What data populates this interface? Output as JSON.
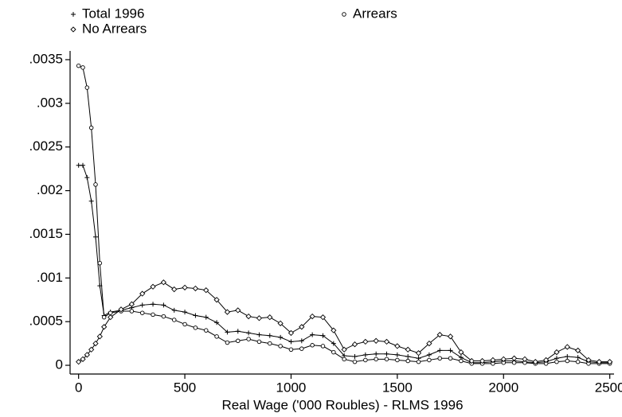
{
  "chart_data": {
    "type": "line",
    "x_label": "Real Wage ('000 Roubles) - RLMS 1996",
    "x": [
      0,
      20,
      40,
      60,
      80,
      100,
      120,
      150,
      200,
      250,
      300,
      350,
      400,
      450,
      500,
      550,
      600,
      650,
      700,
      750,
      800,
      850,
      900,
      950,
      1000,
      1050,
      1100,
      1150,
      1200,
      1250,
      1300,
      1350,
      1400,
      1450,
      1500,
      1550,
      1600,
      1650,
      1700,
      1750,
      1800,
      1850,
      1900,
      1950,
      2000,
      2050,
      2100,
      2150,
      2200,
      2250,
      2300,
      2350,
      2400,
      2450,
      2500
    ],
    "series": [
      {
        "name": "Total 1996",
        "marker": "plus",
        "color": "#000000",
        "values": [
          0.00229,
          0.00229,
          0.00215,
          0.00188,
          0.00147,
          0.00091,
          0.00057,
          0.00061,
          0.00063,
          0.00066,
          0.00069,
          0.0007,
          0.00069,
          0.00063,
          0.00061,
          0.00057,
          0.00055,
          0.00049,
          0.00038,
          0.00039,
          0.00037,
          0.00035,
          0.00034,
          0.00032,
          0.00027,
          0.00028,
          0.00035,
          0.00034,
          0.00025,
          0.00011,
          0.0001,
          0.00012,
          0.00013,
          0.00013,
          0.00012,
          0.0001,
          8e-05,
          0.00012,
          0.00017,
          0.00017,
          9e-05,
          3e-05,
          3e-05,
          4e-05,
          5e-05,
          5e-05,
          4e-05,
          3e-05,
          4e-05,
          8e-05,
          0.0001,
          9e-05,
          4e-05,
          3e-05,
          3e-05
        ]
      },
      {
        "name": "Arrears",
        "marker": "circle",
        "color": "#000000",
        "values": [
          0.00343,
          0.00341,
          0.00318,
          0.00272,
          0.00207,
          0.00117,
          0.00055,
          0.0006,
          0.00062,
          0.00062,
          0.0006,
          0.00058,
          0.00056,
          0.00052,
          0.00047,
          0.00043,
          0.0004,
          0.00033,
          0.00026,
          0.00028,
          0.0003,
          0.00027,
          0.00025,
          0.00022,
          0.00018,
          0.00019,
          0.00023,
          0.00022,
          0.00015,
          7e-05,
          4e-05,
          6e-05,
          7e-05,
          7e-05,
          6e-05,
          5e-05,
          4e-05,
          6e-05,
          8e-05,
          8e-05,
          5e-05,
          2e-05,
          2e-05,
          2e-05,
          3e-05,
          3e-05,
          3e-05,
          2e-05,
          2e-05,
          4e-05,
          5e-05,
          4e-05,
          2e-05,
          2e-05,
          2e-05
        ]
      },
      {
        "name": "No Arrears",
        "marker": "diamond",
        "color": "#000000",
        "values": [
          4e-05,
          7e-05,
          0.00012,
          0.00018,
          0.00025,
          0.00033,
          0.00044,
          0.00055,
          0.00064,
          0.0007,
          0.00082,
          0.0009,
          0.00095,
          0.00087,
          0.00089,
          0.00088,
          0.00086,
          0.00075,
          0.00061,
          0.00063,
          0.00056,
          0.00054,
          0.00055,
          0.00048,
          0.00037,
          0.00044,
          0.00056,
          0.00055,
          0.0004,
          0.00018,
          0.00024,
          0.00027,
          0.00028,
          0.00027,
          0.00022,
          0.00018,
          0.00014,
          0.00025,
          0.00035,
          0.00033,
          0.00015,
          5e-05,
          5e-05,
          6e-05,
          7e-05,
          8e-05,
          7e-05,
          4e-05,
          6e-05,
          0.00015,
          0.00021,
          0.00017,
          6e-05,
          4e-05,
          4e-05
        ]
      }
    ],
    "xlim": [
      -40,
      2520
    ],
    "ylim": [
      -0.0001,
      0.0036
    ],
    "xticks": [
      0,
      500,
      1000,
      1500,
      2000,
      2500
    ],
    "yticks": [
      0,
      {
        "value": 0.0005,
        "label": ".0005"
      },
      {
        "value": 0.001,
        "label": ".001"
      },
      {
        "value": 0.0015,
        "label": ".0015"
      },
      {
        "value": 0.002,
        "label": ".002"
      },
      {
        "value": 0.0025,
        "label": ".0025"
      },
      {
        "value": 0.003,
        "label": ".003"
      },
      {
        "value": 0.0035,
        "label": ".0035"
      }
    ],
    "grid": false,
    "legend": "top"
  }
}
